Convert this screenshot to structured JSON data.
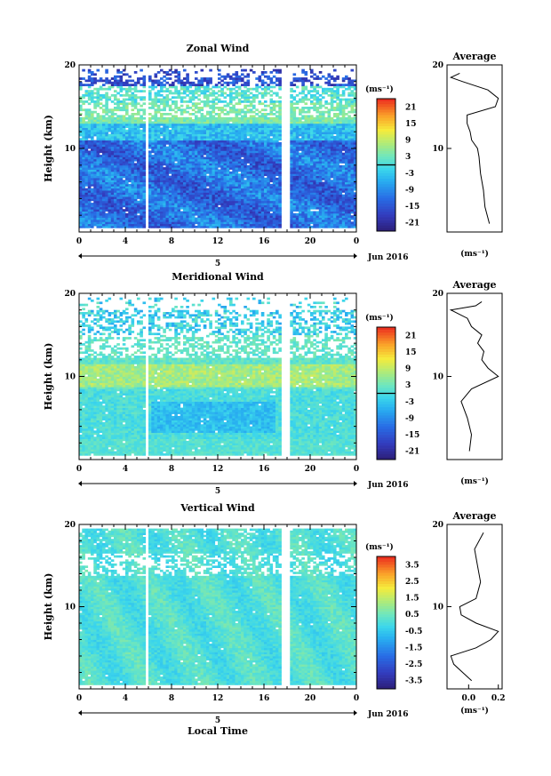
{
  "figure": {
    "date_label": "Jun 2016",
    "day_label": "5",
    "time_axis_label": "Local Time",
    "colorbar_unit": "(ms⁻¹)",
    "average_title": "Average",
    "average_xlabel": "(ms⁻¹)"
  },
  "chart_data": [
    {
      "type": "heatmap",
      "title": "Zonal Wind",
      "xlabel": "",
      "ylabel": "Height (km)",
      "x_ticks": [
        "0",
        "4",
        "8",
        "12",
        "16",
        "20",
        "0"
      ],
      "xlim": [
        0,
        24
      ],
      "ylim": [
        0,
        20
      ],
      "y_ticks": [
        "10",
        "20"
      ],
      "colorbar": {
        "ticks": [
          "21",
          "15",
          "9",
          "3",
          "-3",
          "-9",
          "-15",
          "-21"
        ],
        "range": [
          -24,
          24
        ],
        "zero_contour": true
      },
      "data_gaps_hours": [
        [
          5.6,
          5.9
        ],
        [
          17.4,
          18.0
        ]
      ],
      "profile_mean_by_height": {
        "h1": -2,
        "h3": -5,
        "h5": -6,
        "h7": -8,
        "h9": -9,
        "h10": -10,
        "h11": -14,
        "h12": -15,
        "h13": -17,
        "h14": -17,
        "h15": 2,
        "h16": 4,
        "h17": -3,
        "h18": -20,
        "h18.5": -28,
        "h19": -22
      }
    },
    {
      "type": "heatmap",
      "title": "Meridional Wind",
      "xlabel": "",
      "ylabel": "Height (km)",
      "x_ticks": [
        "0",
        "4",
        "8",
        "12",
        "16",
        "20",
        "0"
      ],
      "xlim": [
        0,
        24
      ],
      "ylim": [
        0,
        20
      ],
      "y_ticks": [
        "10",
        "20"
      ],
      "colorbar": {
        "ticks": [
          "21",
          "15",
          "9",
          "3",
          "-3",
          "-9",
          "-15",
          "-21"
        ],
        "range": [
          -24,
          24
        ],
        "zero_contour": true
      },
      "data_gaps_hours": [
        [
          5.6,
          5.9
        ],
        [
          17.4,
          18.0
        ]
      ],
      "profile_mean_by_height": {
        "h1": -1.5,
        "h3": -1,
        "h5": -2,
        "h7": -3.5,
        "h8.5": -1,
        "h10": 5.5,
        "h11": 3,
        "h12": 1.5,
        "h13": 2,
        "h14": 0.5,
        "h15": 1.5,
        "h16": -1,
        "h17": -2,
        "h18": -6,
        "h18.5": 0,
        "h19": 1.5
      }
    },
    {
      "type": "heatmap",
      "title": "Vertical Wind",
      "xlabel": "Local Time",
      "ylabel": "Height (km)",
      "x_ticks": [
        "0",
        "4",
        "8",
        "12",
        "16",
        "20",
        "0"
      ],
      "xlim": [
        0,
        24
      ],
      "ylim": [
        0,
        20
      ],
      "y_ticks": [
        "10",
        "20"
      ],
      "colorbar": {
        "ticks": [
          "3.5",
          "2.5",
          "1.5",
          "0.5",
          "-0.5",
          "-1.5",
          "-2.5",
          "-3.5"
        ],
        "range": [
          -4,
          4
        ],
        "zero_contour": false
      },
      "data_gaps_hours": [
        [
          5.6,
          5.9
        ],
        [
          17.4,
          18.0
        ]
      ],
      "profile_mean_by_height": {
        "h1": 0.02,
        "h3": -0.1,
        "h4": -0.12,
        "h5": 0.05,
        "h6": 0.15,
        "h7": 0.2,
        "h8": 0.05,
        "h9": -0.05,
        "h10": -0.06,
        "h11": 0.05,
        "h13": 0.08,
        "h15": 0.06,
        "h17": 0.04,
        "h19": 0.1
      },
      "profile_xticks": [
        "0.0",
        "0.2"
      ]
    }
  ]
}
